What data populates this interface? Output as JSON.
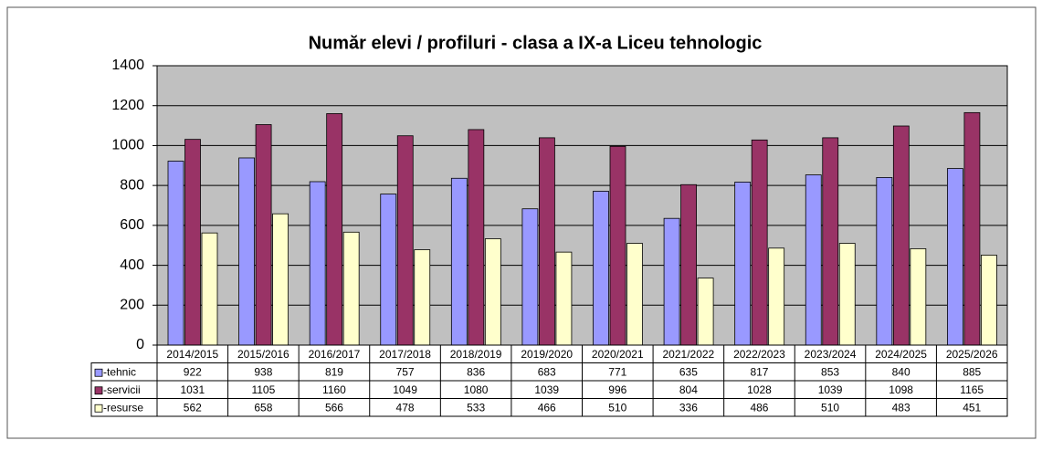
{
  "chart_data": {
    "type": "bar",
    "title": "Număr elevi / profiluri - clasa a IX-a Liceu tehnologic",
    "categories": [
      "2014/2015",
      "2015/2016",
      "2016/2017",
      "2017/2018",
      "2018/2019",
      "2019/2020",
      "2020/2021",
      "2021/2022",
      "2022/2023",
      "2023/2024",
      "2024/2025",
      "2025/2026"
    ],
    "series": [
      {
        "name": "-tehnic",
        "color": "#9999ff",
        "values": [
          922,
          938,
          819,
          757,
          836,
          683,
          771,
          635,
          817,
          853,
          840,
          885
        ]
      },
      {
        "name": "-servicii",
        "color": "#993366",
        "values": [
          1031,
          1105,
          1160,
          1049,
          1080,
          1039,
          996,
          804,
          1028,
          1039,
          1098,
          1165
        ]
      },
      {
        "name": "-resurse",
        "color": "#ffffcc",
        "values": [
          562,
          658,
          566,
          478,
          533,
          466,
          510,
          336,
          486,
          510,
          483,
          451
        ]
      }
    ],
    "ylim": [
      0,
      1400
    ],
    "yticks": [
      0,
      200,
      400,
      600,
      800,
      1000,
      1200,
      1400
    ],
    "grid": true,
    "plot_background": "#c0c0c0"
  }
}
